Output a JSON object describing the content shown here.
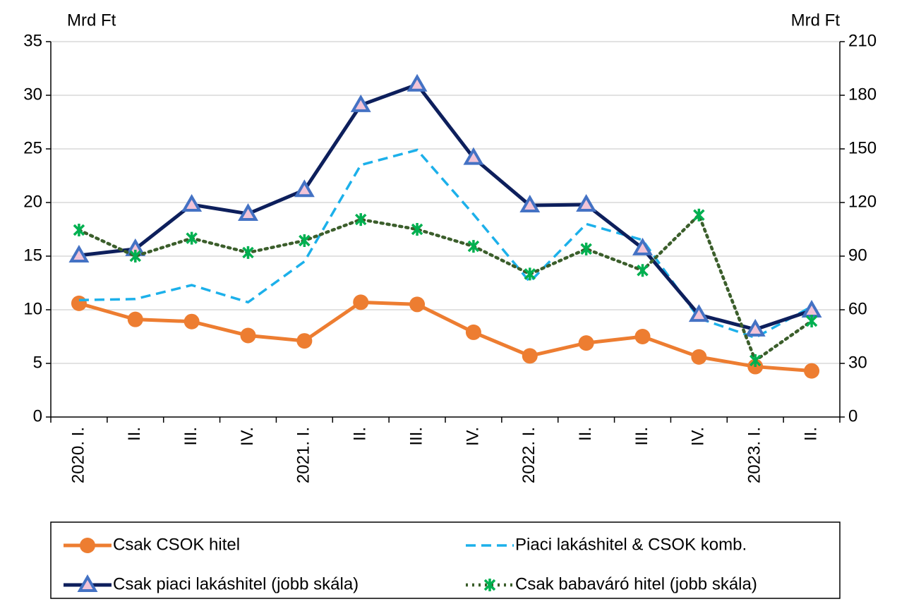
{
  "chart_data": {
    "type": "line",
    "y_label": "Mrd Ft",
    "y2_label": "Mrd Ft",
    "categories": [
      "2020. I.",
      "II.",
      "III.",
      "IV.",
      "2021. I.",
      "II.",
      "III.",
      "IV.",
      "2022. I.",
      "II.",
      "III.",
      "IV.",
      "2023. I.",
      "II."
    ],
    "ylim": [
      0,
      35
    ],
    "yticks": [
      0,
      5,
      10,
      15,
      20,
      25,
      30,
      35
    ],
    "y2lim": [
      0,
      210
    ],
    "y2ticks": [
      0,
      30,
      60,
      90,
      120,
      150,
      180,
      210
    ],
    "grid": true,
    "series": [
      {
        "name": "Csak CSOK hitel",
        "color": "#ed7d31",
        "style": "solid",
        "marker": "circle",
        "values": [
          10.6,
          9.1,
          8.9,
          7.6,
          7.1,
          10.7,
          10.5,
          7.9,
          5.7,
          6.9,
          7.5,
          5.6,
          4.7,
          4.3
        ]
      },
      {
        "name": "Piaci lakáshitel & CSOK komb.",
        "color": "#1cb0ea",
        "style": "dashed",
        "marker": "none",
        "values": [
          10.9,
          11.0,
          12.3,
          10.7,
          14.5,
          23.5,
          24.9,
          18.9,
          12.6,
          18.0,
          16.5,
          9.2,
          7.4,
          10.3
        ]
      },
      {
        "name": "Csak piaci lakáshitel (jobb skála)",
        "color": "#0d1f5c",
        "style": "solid",
        "marker": "triangle",
        "axis": "y2",
        "values": [
          90.4,
          94,
          118.8,
          113.7,
          127,
          174.5,
          186,
          145,
          118.4,
          118.8,
          94.4,
          57.2,
          49,
          59.6
        ]
      },
      {
        "name": "Csak babaváró hitel (jobb skála)",
        "color": "#3b5e2b",
        "style": "dotted",
        "marker": "star",
        "axis": "y2",
        "values": [
          104.6,
          90,
          100,
          92,
          98.7,
          110.5,
          105,
          95.5,
          80,
          94,
          82,
          113,
          31.6,
          53.7
        ]
      }
    ]
  }
}
